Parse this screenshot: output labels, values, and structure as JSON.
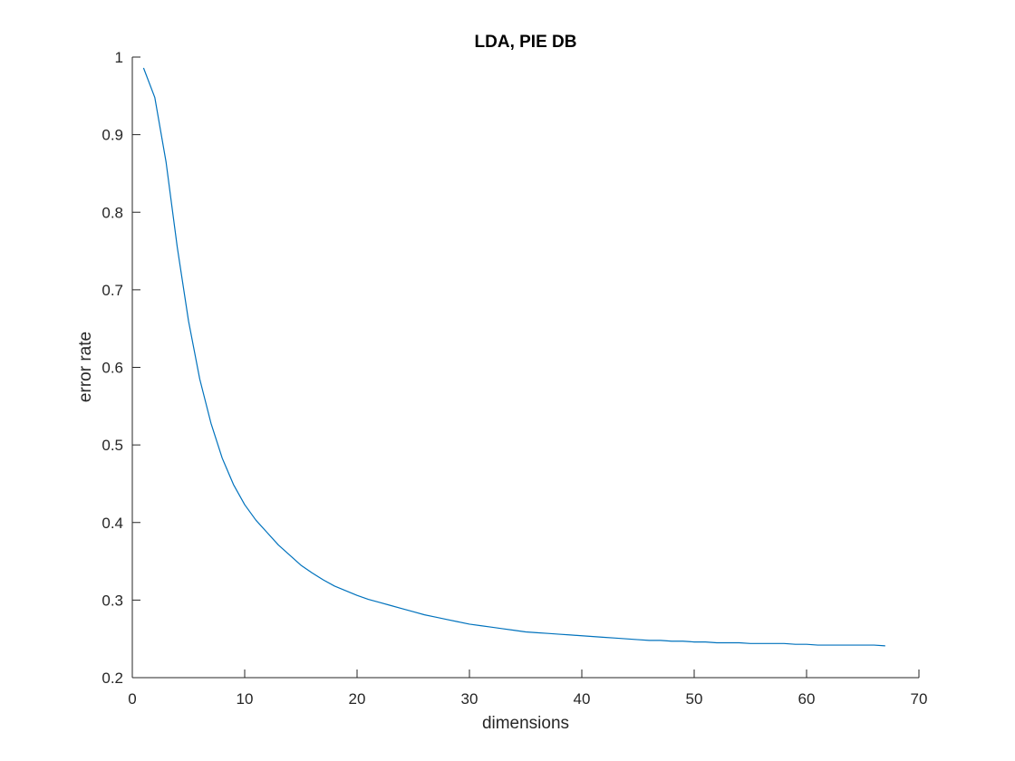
{
  "chart_data": {
    "type": "line",
    "title": "LDA, PIE DB",
    "xlabel": "dimensions",
    "ylabel": "error rate",
    "xlim": [
      0,
      70
    ],
    "ylim": [
      0.2,
      1
    ],
    "xticks": [
      "0",
      "10",
      "20",
      "30",
      "40",
      "50",
      "60",
      "70"
    ],
    "yticks": [
      "0.2",
      "0.3",
      "0.4",
      "0.5",
      "0.6",
      "0.7",
      "0.8",
      "0.9",
      "1"
    ],
    "grid": false,
    "series": [
      {
        "color": "#0072bd",
        "x": [
          1,
          2,
          3,
          4,
          5,
          6,
          7,
          8,
          9,
          10,
          11,
          12,
          13,
          14,
          15,
          16,
          17,
          18,
          19,
          20,
          21,
          22,
          23,
          24,
          25,
          26,
          27,
          28,
          29,
          30,
          31,
          32,
          33,
          34,
          35,
          36,
          37,
          38,
          39,
          40,
          41,
          42,
          43,
          44,
          45,
          46,
          47,
          48,
          49,
          50,
          51,
          52,
          53,
          54,
          55,
          56,
          57,
          58,
          59,
          60,
          61,
          62,
          63,
          64,
          65,
          66,
          67
        ],
        "y": [
          0.986,
          0.948,
          0.865,
          0.755,
          0.66,
          0.585,
          0.528,
          0.483,
          0.449,
          0.423,
          0.403,
          0.387,
          0.371,
          0.358,
          0.345,
          0.335,
          0.326,
          0.318,
          0.312,
          0.306,
          0.301,
          0.297,
          0.293,
          0.289,
          0.285,
          0.281,
          0.278,
          0.275,
          0.272,
          0.269,
          0.267,
          0.265,
          0.263,
          0.261,
          0.259,
          0.258,
          0.257,
          0.256,
          0.255,
          0.254,
          0.253,
          0.252,
          0.251,
          0.25,
          0.249,
          0.248,
          0.248,
          0.247,
          0.247,
          0.246,
          0.246,
          0.245,
          0.245,
          0.245,
          0.244,
          0.244,
          0.244,
          0.244,
          0.243,
          0.243,
          0.242,
          0.242,
          0.242,
          0.242,
          0.242,
          0.242,
          0.241
        ]
      }
    ]
  }
}
